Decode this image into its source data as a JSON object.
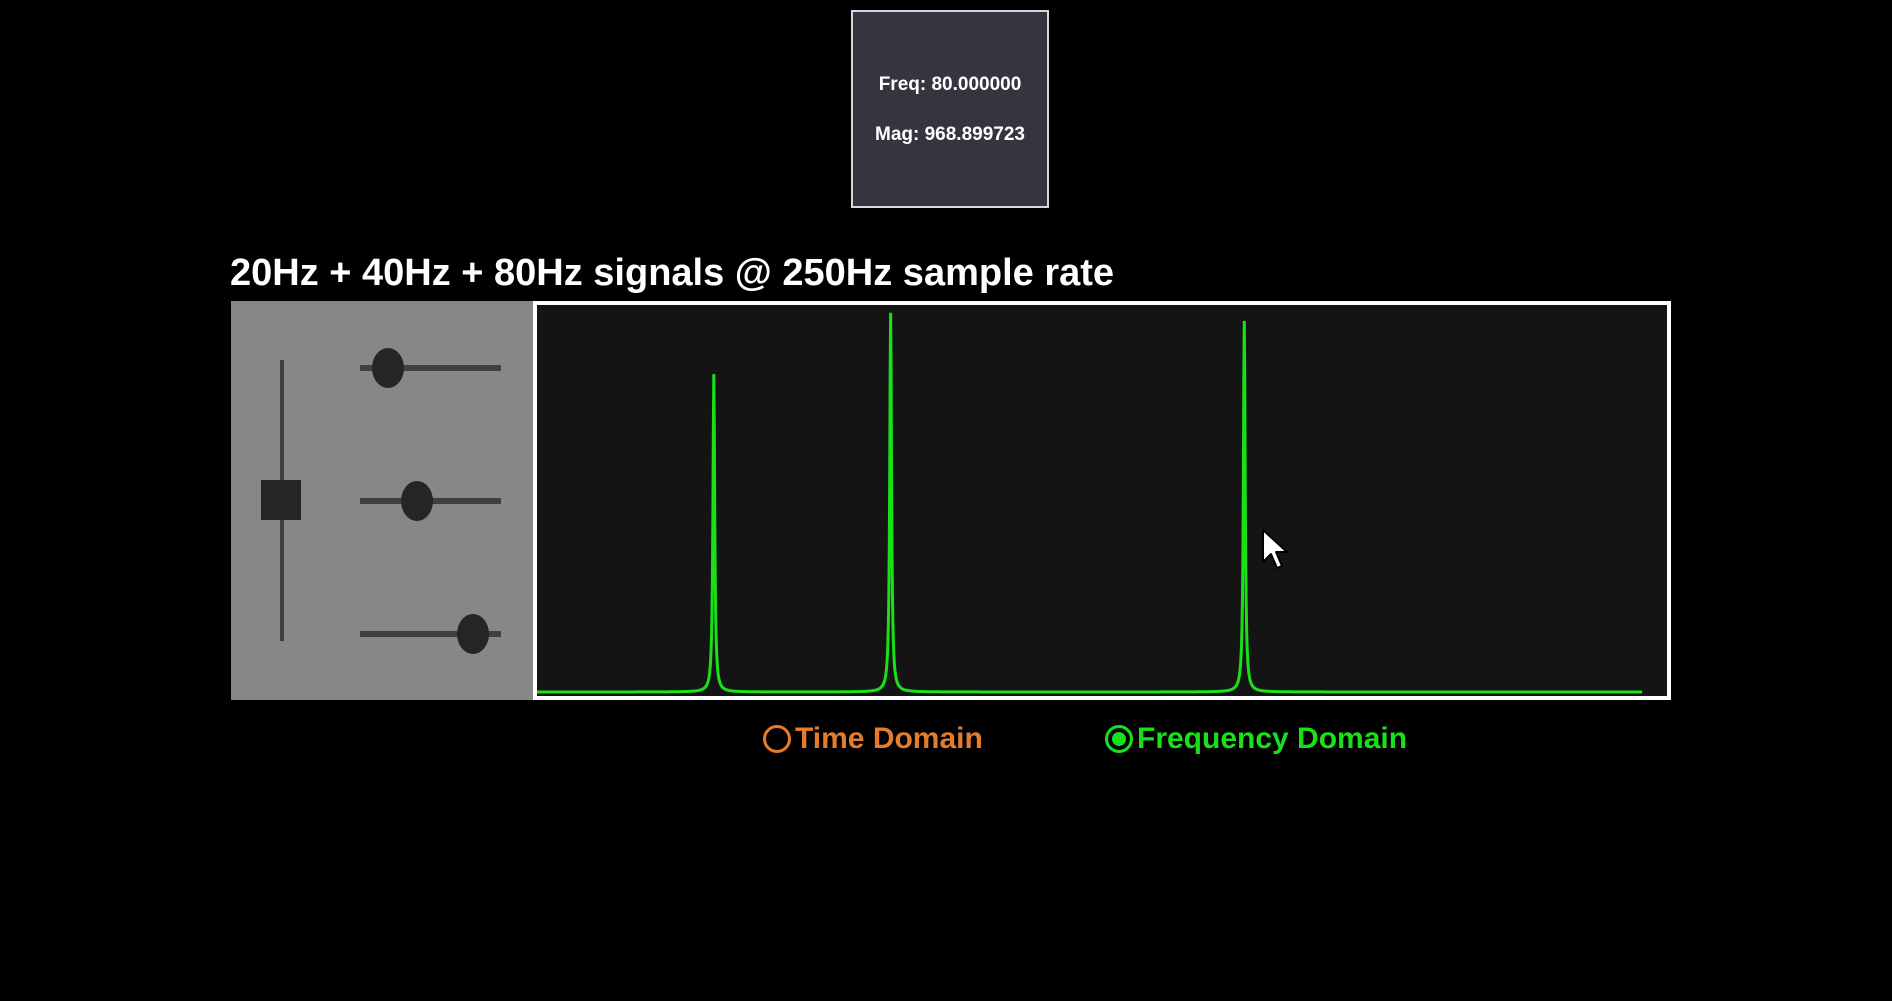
{
  "tooltip": {
    "freq": "Freq: 80.000000",
    "mag": "Mag: 968.899723"
  },
  "title": "20Hz + 40Hz + 80Hz signals @ 250Hz sample rate",
  "controls": {
    "amplitude_slider": {
      "orientation": "vertical",
      "value": 0.5
    },
    "frequency_sliders": [
      {
        "value": 0.2
      },
      {
        "value": 0.4
      },
      {
        "value": 0.8
      }
    ]
  },
  "chart_data": {
    "type": "line",
    "mode": "frequency-domain",
    "series": [
      {
        "color": "#19e019",
        "peaks": [
          {
            "freq": 20,
            "mag": 830
          },
          {
            "freq": 40,
            "mag": 990
          },
          {
            "freq": 80,
            "mag": 968.899723
          }
        ]
      }
    ],
    "xlim": [
      0,
      125
    ],
    "ylim": [
      0,
      1000
    ],
    "grid": false,
    "title": "",
    "xlabel": "",
    "ylabel": ""
  },
  "radios": [
    {
      "label": "Time Domain",
      "selected": false,
      "color": "#e47c2e"
    },
    {
      "label": "Frequency Domain",
      "selected": true,
      "color": "#19e019"
    }
  ]
}
